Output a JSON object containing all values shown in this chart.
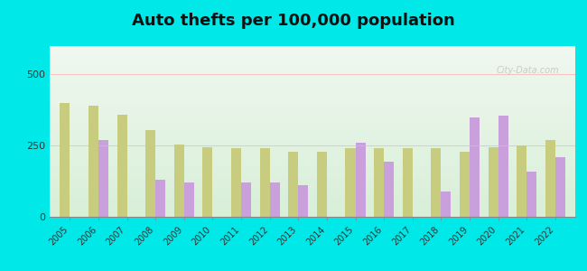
{
  "title": "Auto thefts per 100,000 population",
  "years": [
    2005,
    2006,
    2007,
    2008,
    2009,
    2010,
    2011,
    2012,
    2013,
    2014,
    2015,
    2016,
    2017,
    2018,
    2019,
    2020,
    2021,
    2022
  ],
  "lone_jack": [
    null,
    270,
    null,
    130,
    120,
    null,
    120,
    120,
    110,
    null,
    260,
    195,
    null,
    90,
    350,
    355,
    160,
    210
  ],
  "us_average": [
    400,
    390,
    360,
    305,
    255,
    245,
    240,
    240,
    230,
    230,
    240,
    240,
    240,
    240,
    230,
    245,
    250,
    270
  ],
  "lone_jack_color": "#c9a0dc",
  "us_average_color": "#c8cc7f",
  "outer_bg": "#00e8e8",
  "plot_bg_top": "#f0f8f0",
  "plot_bg_bottom": "#d8efd8",
  "ylim": [
    0,
    600
  ],
  "yticks": [
    0,
    250,
    500
  ],
  "title_fontsize": 13,
  "bar_width": 0.35
}
